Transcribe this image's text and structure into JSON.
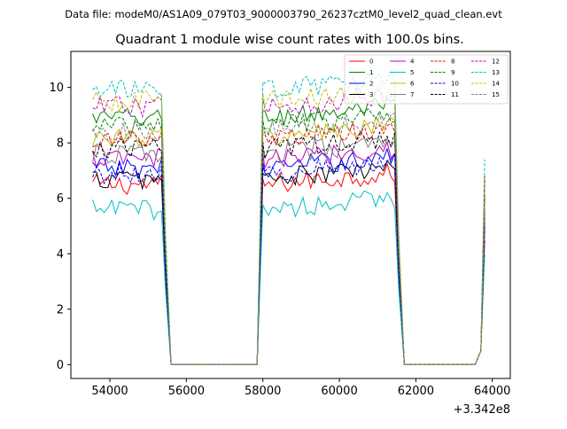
{
  "chart_data": {
    "type": "line",
    "suptitle": "Data file: modeM0/AS1A09_079T03_9000003790_26237cztM0_level2_quad_clean.evt",
    "title": "Quadrant 1 module wise count rates with 100.0s bins.",
    "xlabel": "",
    "ylabel": "",
    "x_offset_label": "+3.342e8",
    "xlim": [
      52980,
      64470
    ],
    "ylim": [
      -0.5,
      11.3
    ],
    "x_ticks": [
      54000,
      56000,
      58000,
      60000,
      62000,
      64000
    ],
    "y_ticks": [
      0,
      2,
      4,
      6,
      8,
      10
    ],
    "grid": false,
    "legend_placement": "top-right",
    "segments": [
      {
        "start": 53550,
        "end": 55350
      },
      {
        "start": 58050,
        "end": 61450
      },
      {
        "start": 63800,
        "end": 63800
      }
    ],
    "drop_x": [
      55450,
      55600,
      57850,
      58000,
      61550,
      61700,
      63550,
      63700
    ],
    "series": [
      {
        "name": "0",
        "color": "#ff0000",
        "dash": false,
        "level": 6.5,
        "end": 4.5
      },
      {
        "name": "1",
        "color": "#008000",
        "dash": false,
        "level": 8.9,
        "end": 6.0
      },
      {
        "name": "2",
        "color": "#0000ff",
        "dash": false,
        "level": 7.1,
        "end": 5.0
      },
      {
        "name": "3",
        "color": "#000000",
        "dash": false,
        "level": 6.7,
        "end": 6.8
      },
      {
        "name": "4",
        "color": "#bf00bf",
        "dash": false,
        "level": 7.4,
        "end": 5.2
      },
      {
        "name": "5",
        "color": "#00bfbf",
        "dash": false,
        "level": 5.6,
        "end": 4.0
      },
      {
        "name": "6",
        "color": "#bfbf00",
        "dash": false,
        "level": 8.2,
        "end": 5.6
      },
      {
        "name": "7",
        "color": "#808080",
        "dash": false,
        "level": 7.6,
        "end": 5.3
      },
      {
        "name": "8",
        "color": "#ff0000",
        "dash": true,
        "level": 8.1,
        "end": 5.6
      },
      {
        "name": "9",
        "color": "#008000",
        "dash": true,
        "level": 8.6,
        "end": 6.1
      },
      {
        "name": "10",
        "color": "#0000ff",
        "dash": true,
        "level": 6.9,
        "end": 5.0
      },
      {
        "name": "11",
        "color": "#000000",
        "dash": true,
        "level": 7.8,
        "end": 5.4
      },
      {
        "name": "12",
        "color": "#bf00bf",
        "dash": true,
        "level": 9.3,
        "end": 6.5
      },
      {
        "name": "13",
        "color": "#00bfbf",
        "dash": true,
        "level": 9.9,
        "end": 7.4
      },
      {
        "name": "14",
        "color": "#bfbf00",
        "dash": true,
        "level": 9.5,
        "end": 6.8
      },
      {
        "name": "15",
        "color": "#808080",
        "dash": true,
        "level": 8.4,
        "end": 5.8
      }
    ]
  }
}
